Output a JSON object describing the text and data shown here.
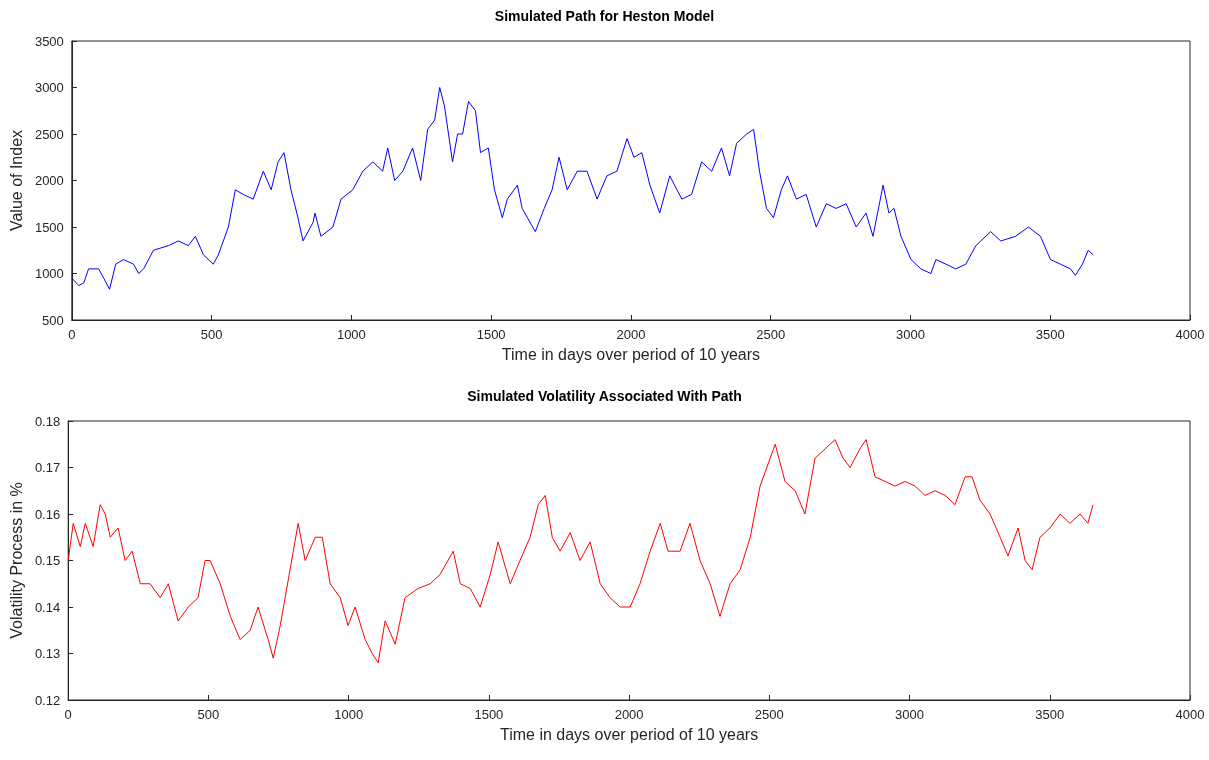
{
  "chart_data": [
    {
      "type": "line",
      "title": "Simulated Path for Heston Model",
      "xlabel": "Time in days over period of 10 years",
      "ylabel": "Value of Index",
      "xlim": [
        0,
        4000
      ],
      "xticks": [
        0,
        500,
        1000,
        1500,
        2000,
        2500,
        3000,
        3500,
        4000
      ],
      "ylim": [
        500,
        3500
      ],
      "yticks": [
        500,
        1000,
        1500,
        2000,
        2500,
        3000,
        3500
      ],
      "grid": false,
      "x": [
        0,
        25,
        43,
        60,
        96,
        114,
        135,
        157,
        185,
        221,
        239,
        257,
        292,
        346,
        381,
        417,
        442,
        471,
        506,
        524,
        560,
        585,
        613,
        649,
        685,
        713,
        738,
        759,
        784,
        809,
        827,
        863,
        870,
        891,
        934,
        963,
        1005,
        1041,
        1077,
        1112,
        1130,
        1155,
        1184,
        1219,
        1248,
        1273,
        1298,
        1316,
        1333,
        1362,
        1380,
        1398,
        1419,
        1444,
        1462,
        1490,
        1512,
        1540,
        1558,
        1594,
        1611,
        1658,
        1690,
        1718,
        1743,
        1772,
        1808,
        1843,
        1879,
        1914,
        1950,
        1986,
        2011,
        2039,
        2068,
        2103,
        2139,
        2182,
        2217,
        2253,
        2289,
        2324,
        2353,
        2378,
        2414,
        2439,
        2460,
        2485,
        2510,
        2538,
        2560,
        2592,
        2627,
        2663,
        2699,
        2734,
        2770,
        2806,
        2841,
        2866,
        2902,
        2923,
        2941,
        2966,
        3002,
        3037,
        3073,
        3091,
        3127,
        3162,
        3198,
        3234,
        3287,
        3323,
        3376,
        3422,
        3465,
        3501,
        3537,
        3572,
        3590,
        3615,
        3636,
        3654
      ],
      "series": [
        {
          "color": "#0000ff",
          "values": [
            950,
            870,
            900,
            1050,
            1050,
            950,
            830,
            1100,
            1150,
            1100,
            1000,
            1050,
            1250,
            1300,
            1350,
            1300,
            1400,
            1200,
            1100,
            1200,
            1500,
            1900,
            1850,
            1800,
            2100,
            1900,
            2200,
            2300,
            1900,
            1600,
            1350,
            1550,
            1650,
            1400,
            1500,
            1800,
            1900,
            2100,
            2200,
            2100,
            2350,
            2000,
            2100,
            2350,
            2000,
            2550,
            2650,
            3000,
            2800,
            2200,
            2500,
            2500,
            2850,
            2750,
            2300,
            2350,
            1900,
            1600,
            1800,
            1950,
            1700,
            1450,
            1700,
            1900,
            2250,
            1900,
            2100,
            2100,
            1800,
            2050,
            2100,
            2450,
            2250,
            2300,
            1950,
            1650,
            2050,
            1800,
            1850,
            2200,
            2100,
            2350,
            2050,
            2400,
            2500,
            2550,
            2100,
            1700,
            1600,
            1900,
            2050,
            1800,
            1850,
            1500,
            1750,
            1700,
            1750,
            1500,
            1650,
            1400,
            1950,
            1650,
            1700,
            1400,
            1150,
            1050,
            1000,
            1150,
            1100,
            1050,
            1100,
            1300,
            1450,
            1350,
            1400,
            1500,
            1400,
            1150,
            1100,
            1050,
            980,
            1100,
            1250,
            1200
          ]
        }
      ]
    },
    {
      "type": "line",
      "title": "Simulated Volatility Associated With Path",
      "xlabel": "Time in days over period of 10 years",
      "ylabel": "Volatility Process in %",
      "xlim": [
        0,
        4000
      ],
      "xticks": [
        0,
        500,
        1000,
        1500,
        2000,
        2500,
        3000,
        3500,
        4000
      ],
      "ylim": [
        0.12,
        0.18
      ],
      "yticks": [
        0.12,
        0.13,
        0.14,
        0.15,
        0.16,
        0.17,
        0.18
      ],
      "grid": false,
      "x": [
        0,
        18,
        43,
        61,
        89,
        114,
        132,
        150,
        178,
        203,
        228,
        257,
        292,
        328,
        357,
        392,
        428,
        463,
        488,
        506,
        542,
        578,
        613,
        649,
        677,
        713,
        731,
        756,
        791,
        820,
        845,
        881,
        906,
        934,
        970,
        998,
        1023,
        1059,
        1084,
        1105,
        1130,
        1166,
        1201,
        1248,
        1291,
        1326,
        1373,
        1398,
        1433,
        1469,
        1505,
        1533,
        1576,
        1611,
        1647,
        1676,
        1701,
        1726,
        1754,
        1790,
        1825,
        1861,
        1897,
        1932,
        1968,
        2004,
        2039,
        2075,
        2111,
        2139,
        2182,
        2217,
        2253,
        2289,
        2324,
        2360,
        2396,
        2432,
        2467,
        2503,
        2521,
        2556,
        2592,
        2627,
        2663,
        2699,
        2734,
        2763,
        2788,
        2823,
        2845,
        2877,
        2913,
        2948,
        2984,
        3020,
        3055,
        3091,
        3127,
        3162,
        3198,
        3223,
        3251,
        3287,
        3323,
        3351,
        3387,
        3412,
        3437,
        3465,
        3501,
        3537,
        3572,
        3608,
        3636,
        3654
      ],
      "series": [
        {
          "color": "#ff0000",
          "values": [
            0.15,
            0.158,
            0.153,
            0.158,
            0.153,
            0.162,
            0.16,
            0.155,
            0.157,
            0.15,
            0.152,
            0.145,
            0.145,
            0.142,
            0.145,
            0.137,
            0.14,
            0.142,
            0.15,
            0.15,
            0.145,
            0.138,
            0.133,
            0.135,
            0.14,
            0.133,
            0.129,
            0.136,
            0.148,
            0.158,
            0.15,
            0.155,
            0.155,
            0.145,
            0.142,
            0.136,
            0.14,
            0.133,
            0.13,
            0.128,
            0.137,
            0.132,
            0.142,
            0.144,
            0.145,
            0.147,
            0.152,
            0.145,
            0.144,
            0.14,
            0.147,
            0.154,
            0.145,
            0.15,
            0.155,
            0.162,
            0.164,
            0.155,
            0.152,
            0.156,
            0.15,
            0.154,
            0.145,
            0.142,
            0.14,
            0.14,
            0.145,
            0.152,
            0.158,
            0.152,
            0.152,
            0.158,
            0.15,
            0.145,
            0.138,
            0.145,
            0.148,
            0.155,
            0.166,
            0.172,
            0.175,
            0.167,
            0.165,
            0.16,
            0.172,
            0.174,
            0.176,
            0.172,
            0.17,
            0.174,
            0.176,
            0.168,
            0.167,
            0.166,
            0.167,
            0.166,
            0.164,
            0.165,
            0.164,
            0.162,
            0.168,
            0.168,
            0.163,
            0.16,
            0.155,
            0.151,
            0.157,
            0.15,
            0.148,
            0.155,
            0.157,
            0.16,
            0.158,
            0.16,
            0.158,
            0.162
          ]
        }
      ]
    }
  ]
}
